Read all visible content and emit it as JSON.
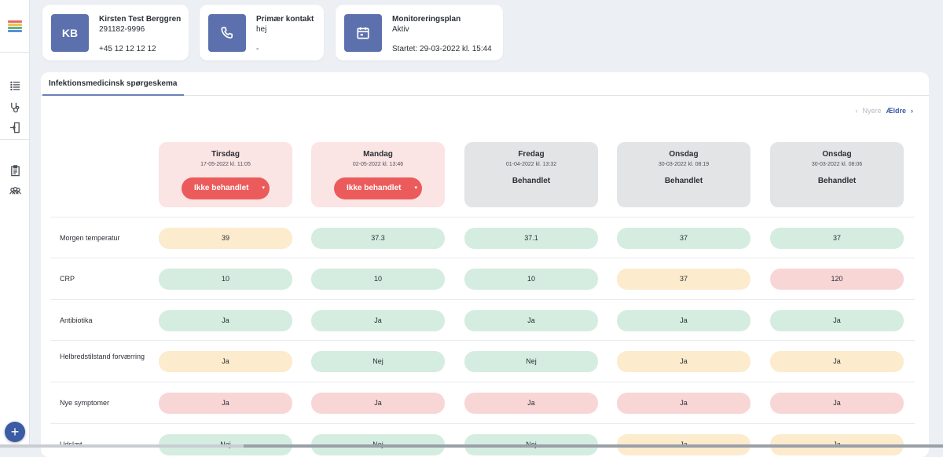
{
  "patient": {
    "initials": "KB",
    "name": "Kirsten Test Berggren",
    "cpr": "291182-9996",
    "phone": "+45 12 12 12 12"
  },
  "contact": {
    "title": "Primær kontakt",
    "value": "hej",
    "extra": "-"
  },
  "plan": {
    "title": "Monitoreringsplan",
    "status": "Aktiv",
    "started": "Startet: 29-03-2022 kl. 15:44"
  },
  "tab": {
    "label": "Infektionsmedicinsk spørgeskema"
  },
  "pager": {
    "prev": "Nyere",
    "next": "Ældre"
  },
  "columns": [
    {
      "day": "Tirsdag",
      "date": "17-05-2022 kl. 11:05",
      "status": "Ikke behandlet",
      "treated": false
    },
    {
      "day": "Mandag",
      "date": "02-05-2022 kl. 13:46",
      "status": "Ikke behandlet",
      "treated": false
    },
    {
      "day": "Fredag",
      "date": "01-04-2022 kl. 13:32",
      "status": "Behandlet",
      "treated": true
    },
    {
      "day": "Onsdag",
      "date": "30-03-2022 kl. 08:19",
      "status": "Behandlet",
      "treated": true
    },
    {
      "day": "Onsdag",
      "date": "30-03-2022 kl. 08:06",
      "status": "Behandlet",
      "treated": true
    }
  ],
  "rows": [
    {
      "label": "Morgen temperatur",
      "values": [
        "39",
        "37.3",
        "37.1",
        "37",
        "37"
      ],
      "levels": [
        "y",
        "g",
        "g",
        "g",
        "g"
      ]
    },
    {
      "label": "CRP",
      "values": [
        "10",
        "10",
        "10",
        "37",
        "120"
      ],
      "levels": [
        "g",
        "g",
        "g",
        "y",
        "r"
      ]
    },
    {
      "label": "Antibiotika",
      "values": [
        "Ja",
        "Ja",
        "Ja",
        "Ja",
        "Ja"
      ],
      "levels": [
        "g",
        "g",
        "g",
        "g",
        "g"
      ]
    },
    {
      "label": "Helbredstilstand forværring",
      "values": [
        "Ja",
        "Nej",
        "Nej",
        "Ja",
        "Ja"
      ],
      "levels": [
        "y",
        "g",
        "g",
        "y",
        "y"
      ]
    },
    {
      "label": "Nye symptomer",
      "values": [
        "Ja",
        "Ja",
        "Ja",
        "Ja",
        "Ja"
      ],
      "levels": [
        "r",
        "r",
        "r",
        "r",
        "r"
      ]
    },
    {
      "label": "Udslæt",
      "values": [
        "Nej",
        "Nej",
        "Nej",
        "Ja",
        "Ja"
      ],
      "levels": [
        "g",
        "g",
        "g",
        "y",
        "y"
      ]
    }
  ],
  "colors": {
    "accent": "#3b5ba5",
    "tile": "#5b70ad",
    "danger": "#ec5b5b",
    "ok": "#d4ede0",
    "warn": "#fcebcd",
    "alert": "#f9d6d6"
  },
  "icons": {
    "logo": "stacked-bars-logo",
    "phone": "phone-icon",
    "calendar": "calendar-icon",
    "add": "plus-icon"
  }
}
